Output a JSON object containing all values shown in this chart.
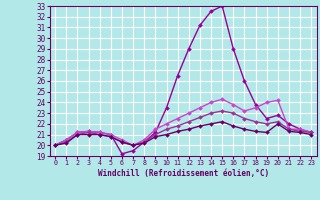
{
  "xlabel": "Windchill (Refroidissement éolien,°C)",
  "bg_color": "#b2e8e8",
  "grid_color": "#ffffff",
  "xlim": [
    -0.5,
    23.5
  ],
  "ylim": [
    19,
    33
  ],
  "yticks": [
    19,
    20,
    21,
    22,
    23,
    24,
    25,
    26,
    27,
    28,
    29,
    30,
    31,
    32,
    33
  ],
  "xticks": [
    0,
    1,
    2,
    3,
    4,
    5,
    6,
    7,
    8,
    9,
    10,
    11,
    12,
    13,
    14,
    15,
    16,
    17,
    18,
    19,
    20,
    21,
    22,
    23
  ],
  "series": [
    {
      "x": [
        0,
        1,
        2,
        3,
        4,
        5,
        6,
        7,
        8,
        9,
        10,
        11,
        12,
        13,
        14,
        15,
        16,
        17,
        18,
        19,
        20,
        21,
        22,
        23
      ],
      "y": [
        20.0,
        20.5,
        21.2,
        21.3,
        21.2,
        21.0,
        19.2,
        19.5,
        20.3,
        21.2,
        23.5,
        26.5,
        29.0,
        31.2,
        32.5,
        33.0,
        29.0,
        26.0,
        23.8,
        22.5,
        22.8,
        22.0,
        21.5,
        21.2
      ],
      "color": "#990099",
      "lw": 1.0
    },
    {
      "x": [
        0,
        1,
        2,
        3,
        4,
        5,
        6,
        7,
        8,
        9,
        10,
        11,
        12,
        13,
        14,
        15,
        16,
        17,
        18,
        19,
        20,
        21,
        22,
        23
      ],
      "y": [
        20.0,
        20.5,
        21.2,
        21.3,
        21.2,
        21.0,
        20.5,
        20.0,
        20.5,
        21.5,
        22.0,
        22.5,
        23.0,
        23.5,
        24.0,
        24.3,
        23.8,
        23.2,
        23.5,
        24.0,
        24.2,
        21.5,
        21.5,
        21.2
      ],
      "color": "#cc44cc",
      "lw": 1.0
    },
    {
      "x": [
        0,
        1,
        2,
        3,
        4,
        5,
        6,
        7,
        8,
        9,
        10,
        11,
        12,
        13,
        14,
        15,
        16,
        17,
        18,
        19,
        20,
        21,
        22,
        23
      ],
      "y": [
        20.0,
        20.3,
        21.0,
        21.2,
        21.0,
        20.8,
        20.3,
        20.0,
        20.3,
        21.0,
        21.5,
        21.8,
        22.2,
        22.6,
        23.0,
        23.2,
        23.0,
        22.5,
        22.2,
        22.0,
        22.2,
        21.5,
        21.3,
        21.2
      ],
      "color": "#993399",
      "lw": 1.0
    },
    {
      "x": [
        0,
        1,
        2,
        3,
        4,
        5,
        6,
        7,
        8,
        9,
        10,
        11,
        12,
        13,
        14,
        15,
        16,
        17,
        18,
        19,
        20,
        21,
        22,
        23
      ],
      "y": [
        20.0,
        20.2,
        21.0,
        21.0,
        21.0,
        20.8,
        20.3,
        20.0,
        20.2,
        20.8,
        21.0,
        21.3,
        21.5,
        21.8,
        22.0,
        22.2,
        21.8,
        21.5,
        21.3,
        21.2,
        22.0,
        21.3,
        21.2,
        21.0
      ],
      "color": "#660066",
      "lw": 1.0
    }
  ]
}
